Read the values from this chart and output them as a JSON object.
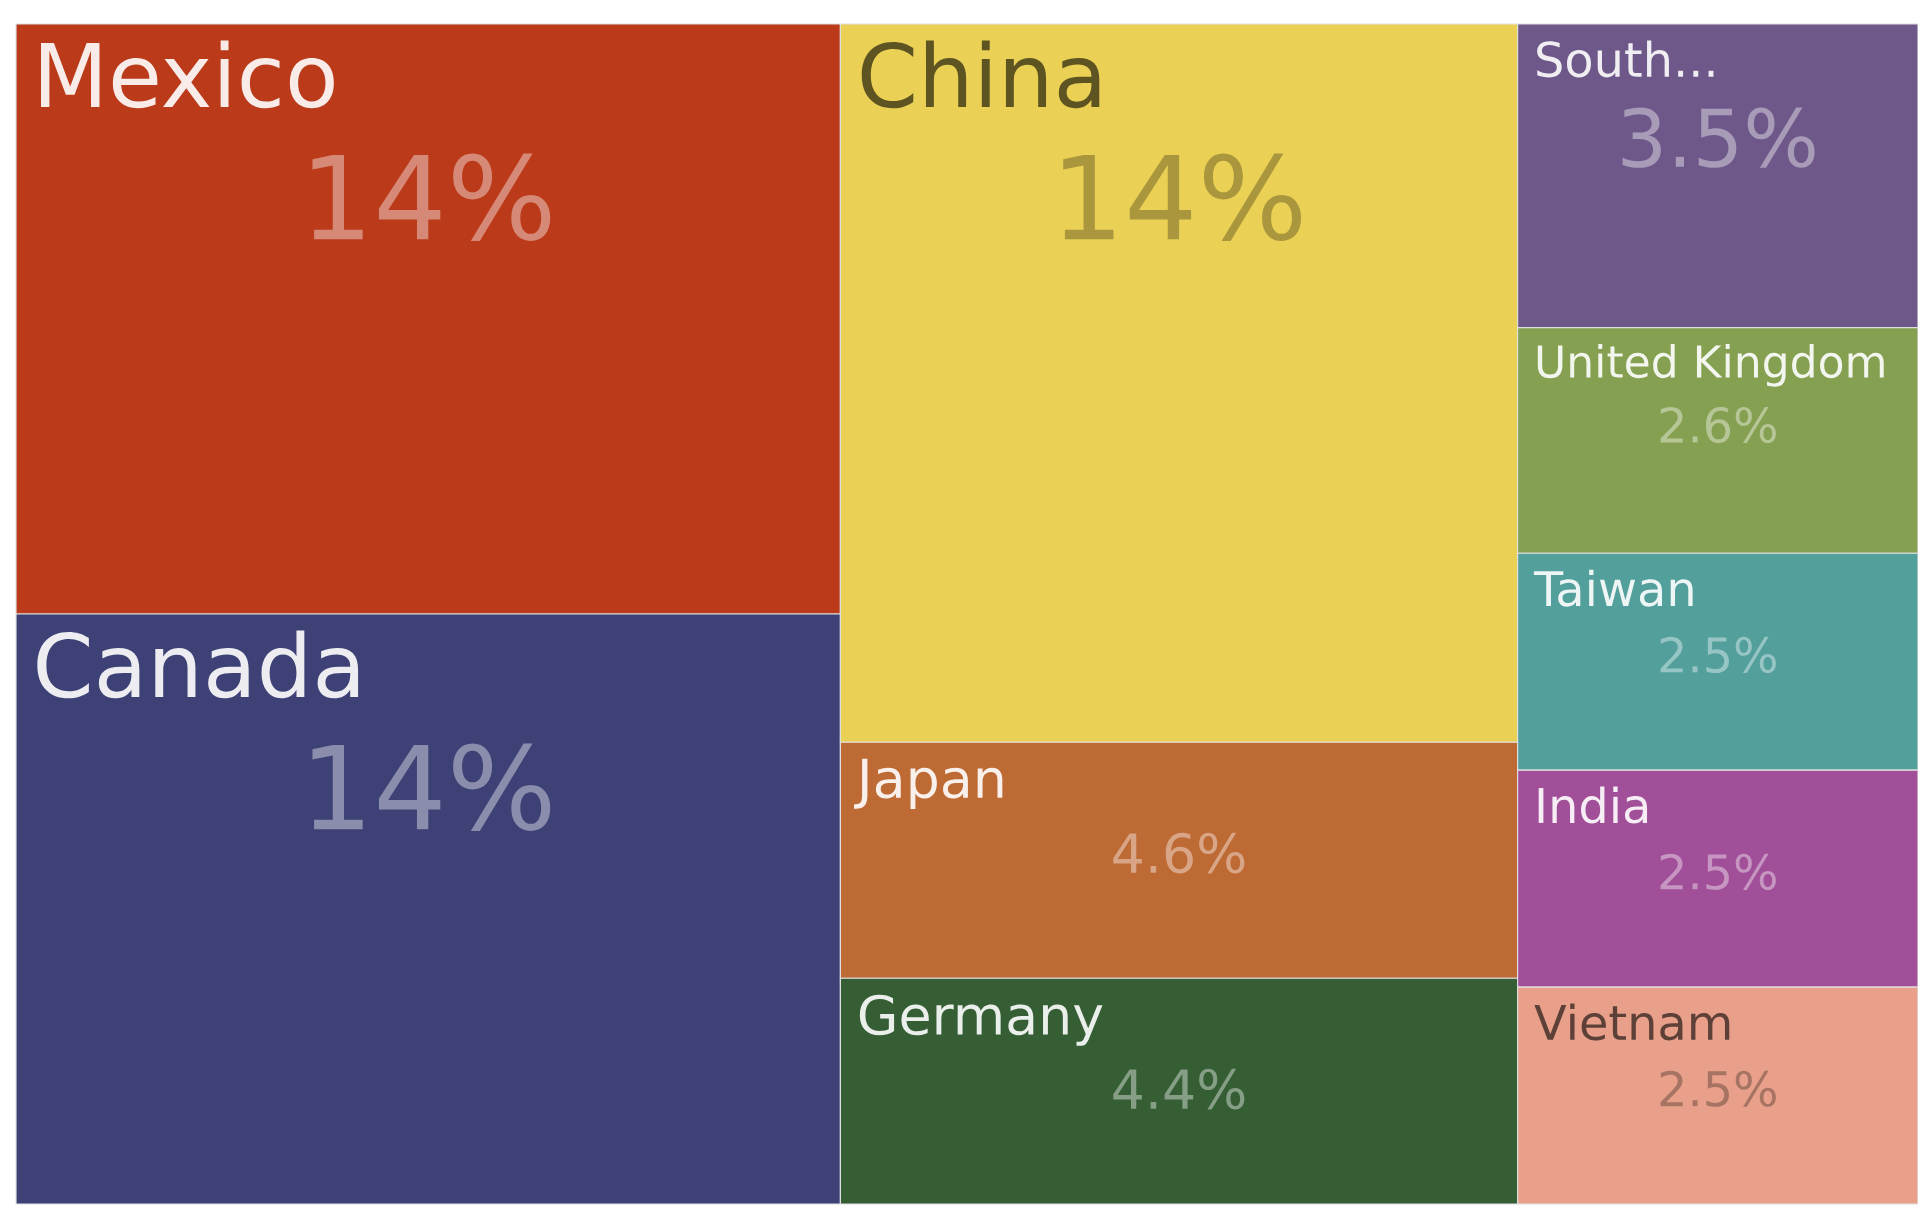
{
  "chart_data": {
    "type": "other",
    "categories": [
      "Mexico",
      "Canada",
      "China",
      "Japan",
      "Germany",
      "South...",
      "United Kingdom",
      "Taiwan",
      "India",
      "Vietnam"
    ],
    "values": [
      14,
      14,
      14,
      4.6,
      4.4,
      3.5,
      2.6,
      2.5,
      2.5,
      2.5
    ],
    "value_labels": [
      "14%",
      "14%",
      "14%",
      "4.6%",
      "4.4%",
      "3.5%",
      "2.6%",
      "2.5%",
      "2.5%",
      "2.5%"
    ],
    "colors": [
      "#bb3a1a",
      "#3d4175",
      "#ead155",
      "#be6a35",
      "#355e34",
      "#6e5889",
      "#86a051",
      "#529f9c",
      "#a04f98",
      "#e8a08a"
    ]
  }
}
